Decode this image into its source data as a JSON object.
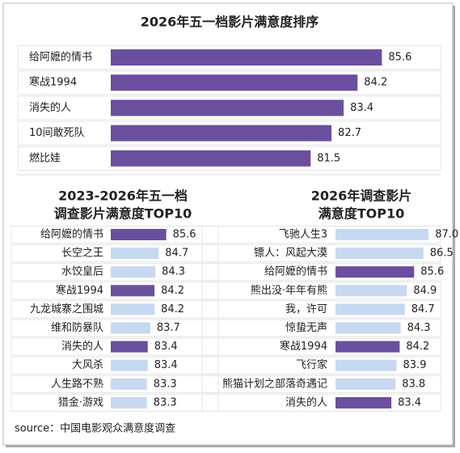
{
  "chart_data": [
    {
      "type": "bar",
      "orientation": "horizontal",
      "title": "2026年五一档影片满意度排序",
      "categories": [
        "给阿嬷的情书",
        "寒战1994",
        "消失的人",
        "10间敢死队",
        "燃比娃"
      ],
      "values": [
        85.6,
        84.2,
        83.4,
        82.7,
        81.5
      ],
      "colors": [
        "#6a4f9f",
        "#6a4f9f",
        "#6a4f9f",
        "#6a4f9f",
        "#6a4f9f"
      ],
      "xlim": [
        70,
        88
      ]
    },
    {
      "type": "bar",
      "orientation": "horizontal",
      "title": [
        "2023-2026年五一档",
        "调查影片满意度TOP10"
      ],
      "categories": [
        "给阿嬷的情书",
        "长空之王",
        "水饺皇后",
        "寒战1994",
        "九龙城寨之围城",
        "维和防暴队",
        "消失的人",
        "大风杀",
        "人生路不熟",
        "猎金·游戏"
      ],
      "values": [
        85.6,
        84.7,
        84.3,
        84.2,
        84.2,
        83.7,
        83.4,
        83.4,
        83.3,
        83.3
      ],
      "colors": [
        "#6a4f9f",
        "#c6d9f1",
        "#c6d9f1",
        "#6a4f9f",
        "#c6d9f1",
        "#c6d9f1",
        "#6a4f9f",
        "#c6d9f1",
        "#c6d9f1",
        "#c6d9f1"
      ],
      "xlim": [
        79,
        88
      ]
    },
    {
      "type": "bar",
      "orientation": "horizontal",
      "title": [
        "2026年调查影片",
        "满意度TOP10"
      ],
      "categories": [
        "飞驰人生3",
        "镖人：风起大漠",
        "给阿嬷的情书",
        "熊出没·年年有熊",
        "我，许可",
        "惊蛰无声",
        "寒战1994",
        "飞行家",
        "熊猫计划之部落奇遇记",
        "消失的人"
      ],
      "values": [
        87.0,
        86.5,
        85.6,
        84.9,
        84.7,
        84.3,
        84.2,
        83.9,
        83.8,
        83.4
      ],
      "value_labels": [
        "87.0",
        "86.5",
        "85.6",
        "84.9",
        "84.7",
        "84.3",
        "84.2",
        "83.9",
        "83.8",
        "83.4"
      ],
      "colors": [
        "#c6d9f1",
        "#c6d9f1",
        "#6a4f9f",
        "#c6d9f1",
        "#c6d9f1",
        "#c6d9f1",
        "#6a4f9f",
        "#c6d9f1",
        "#c6d9f1",
        "#6a4f9f"
      ],
      "xlim": [
        78,
        88
      ]
    }
  ],
  "source": "source：中国电影观众满意度调查"
}
